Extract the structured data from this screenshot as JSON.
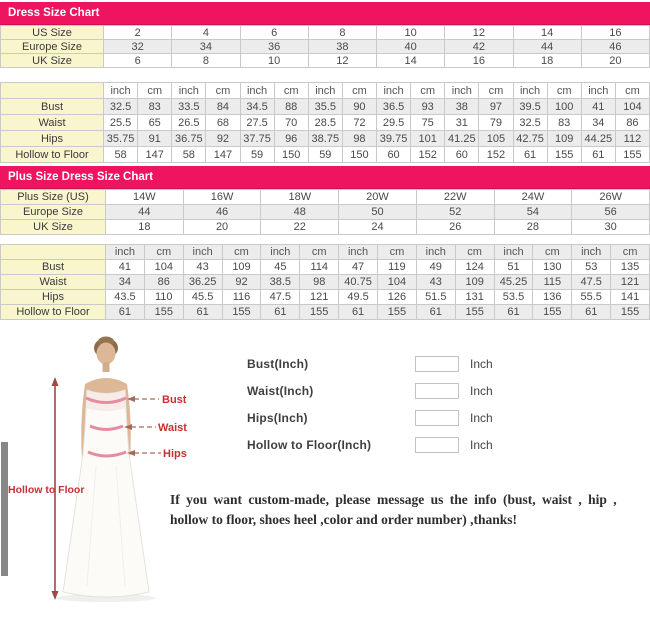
{
  "colors": {
    "pink": "#ee1460",
    "label_bg": "#f9f6ce",
    "alt_row": "#ececec",
    "border": "#c9c9c9",
    "red_label": "#c53030"
  },
  "chart1": {
    "title": "Dress Size Chart",
    "size_rows": [
      {
        "label": "US Size",
        "values": [
          "2",
          "4",
          "6",
          "8",
          "10",
          "12",
          "14",
          "16"
        ]
      },
      {
        "label": "Europe Size",
        "values": [
          "32",
          "34",
          "36",
          "38",
          "40",
          "42",
          "44",
          "46"
        ]
      },
      {
        "label": "UK Size",
        "values": [
          "6",
          "8",
          "10",
          "12",
          "14",
          "16",
          "18",
          "20"
        ]
      }
    ],
    "units": [
      "inch",
      "cm"
    ],
    "measure_rows": [
      {
        "label": "Bust",
        "cells": [
          "32.5",
          "83",
          "33.5",
          "84",
          "34.5",
          "88",
          "35.5",
          "90",
          "36.5",
          "93",
          "38",
          "97",
          "39.5",
          "100",
          "41",
          "104"
        ]
      },
      {
        "label": "Waist",
        "cells": [
          "25.5",
          "65",
          "26.5",
          "68",
          "27.5",
          "70",
          "28.5",
          "72",
          "29.5",
          "75",
          "31",
          "79",
          "32.5",
          "83",
          "34",
          "86"
        ]
      },
      {
        "label": "Hips",
        "cells": [
          "35.75",
          "91",
          "36.75",
          "92",
          "37.75",
          "96",
          "38.75",
          "98",
          "39.75",
          "101",
          "41.25",
          "105",
          "42.75",
          "109",
          "44.25",
          "112"
        ]
      },
      {
        "label": "Hollow to Floor",
        "cells": [
          "58",
          "147",
          "58",
          "147",
          "59",
          "150",
          "59",
          "150",
          "60",
          "152",
          "60",
          "152",
          "61",
          "155",
          "61",
          "155"
        ]
      }
    ]
  },
  "chart2": {
    "title": "Plus Size Dress Size Chart",
    "size_rows": [
      {
        "label": "Plus Size (US)",
        "values": [
          "14W",
          "16W",
          "18W",
          "20W",
          "22W",
          "24W",
          "26W"
        ]
      },
      {
        "label": "Europe Size",
        "values": [
          "44",
          "46",
          "48",
          "50",
          "52",
          "54",
          "56"
        ]
      },
      {
        "label": "UK Size",
        "values": [
          "18",
          "20",
          "22",
          "24",
          "26",
          "28",
          "30"
        ]
      }
    ],
    "units": [
      "inch",
      "cm"
    ],
    "measure_rows": [
      {
        "label": "Bust",
        "cells": [
          "41",
          "104",
          "43",
          "109",
          "45",
          "114",
          "47",
          "119",
          "49",
          "124",
          "51",
          "130",
          "53",
          "135"
        ]
      },
      {
        "label": "Waist",
        "cells": [
          "34",
          "86",
          "36.25",
          "92",
          "38.5",
          "98",
          "40.75",
          "104",
          "43",
          "109",
          "45.25",
          "115",
          "47.5",
          "121"
        ]
      },
      {
        "label": "Hips",
        "cells": [
          "43.5",
          "110",
          "45.5",
          "116",
          "47.5",
          "121",
          "49.5",
          "126",
          "51.5",
          "131",
          "53.5",
          "136",
          "55.5",
          "141"
        ]
      },
      {
        "label": "Hollow to Floor",
        "cells": [
          "61",
          "155",
          "61",
          "155",
          "61",
          "155",
          "61",
          "155",
          "61",
          "155",
          "61",
          "155",
          "61",
          "155"
        ]
      }
    ]
  },
  "figure": {
    "bust_label": "Bust",
    "waist_label": "Waist",
    "hips_label": "Hips",
    "hollow_label": "Hollow to Floor"
  },
  "form": {
    "rows": [
      {
        "label": "Bust(Inch)",
        "value": "",
        "unit": "Inch"
      },
      {
        "label": "Waist(Inch)",
        "value": "",
        "unit": "Inch"
      },
      {
        "label": "Hips(Inch)",
        "value": "",
        "unit": "Inch"
      },
      {
        "label": "Hollow to Floor(Inch)",
        "value": "",
        "unit": "Inch"
      }
    ]
  },
  "note": {
    "line1": "If you want custom-made, please message us the info (bust, waist , hip ,",
    "line2": "hollow to floor, shoes heel ,color and order number) ,thanks!"
  }
}
